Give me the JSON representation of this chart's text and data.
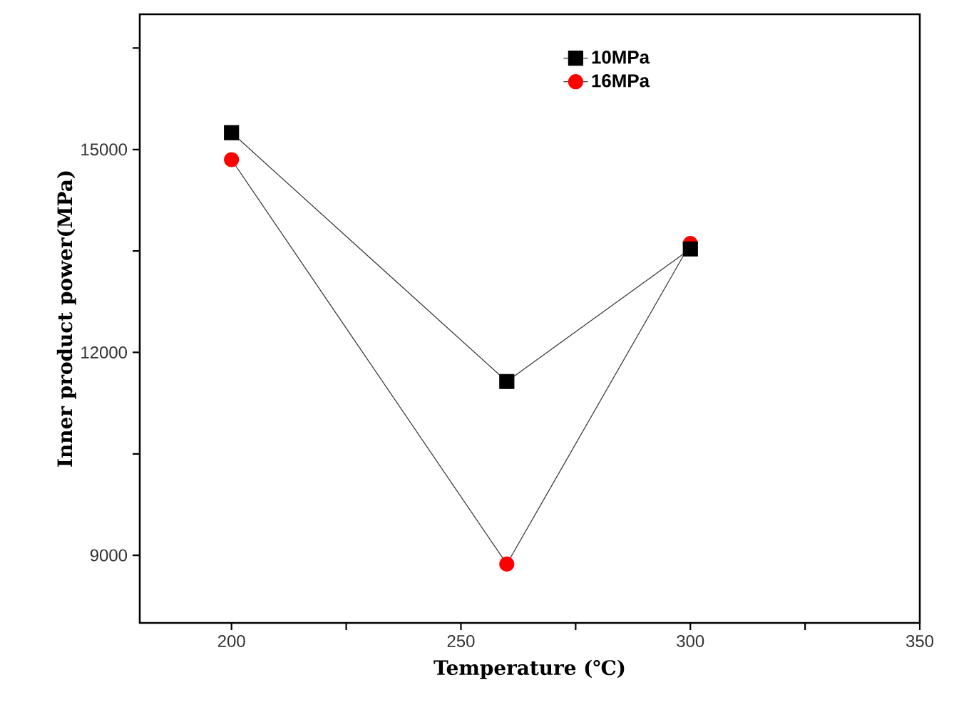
{
  "chart_data": {
    "type": "line",
    "xlabel": "Temperature (℃)",
    "ylabel": "Inner product power(MPa)",
    "x": [
      200,
      260,
      300
    ],
    "series": [
      {
        "name": "10MPa",
        "color": "#000000",
        "marker": "square",
        "values": [
          15250,
          11570,
          13530
        ]
      },
      {
        "name": "16MPa",
        "color": "#ff0000",
        "marker": "circle",
        "values": [
          14850,
          8870,
          13610
        ]
      }
    ],
    "xlim": [
      180,
      350
    ],
    "ylim": [
      8000,
      17000
    ],
    "xticks": [
      200,
      {
        "value": 225,
        "label": null
      },
      250,
      {
        "value": 275,
        "label": null
      },
      300,
      {
        "value": 325,
        "label": null
      },
      350
    ],
    "yticks": [
      {
        "value": 16500,
        "label": null
      },
      15000,
      {
        "value": 13500,
        "label": null
      },
      12000,
      {
        "value": 10500,
        "label": null
      },
      9000
    ],
    "grid": false,
    "legend": "top",
    "line_style": "solid"
  }
}
